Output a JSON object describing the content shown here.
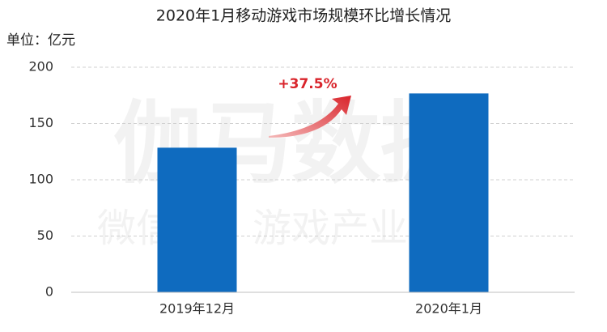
{
  "chart_data": {
    "type": "bar",
    "title": "2020年1月移动游戏市场规模环比增长情况",
    "unit_label": "单位：亿元",
    "categories": [
      "2019年12月",
      "2020年1月"
    ],
    "values": [
      128.5,
      176.7
    ],
    "color": "#0f6bbf",
    "ylim": [
      0,
      200
    ],
    "yticks": [
      0,
      50,
      100,
      150,
      200
    ],
    "grid": true,
    "annotation": "+37.5%",
    "watermark": [
      "伽马数据",
      "微信号：游戏产业报告"
    ]
  }
}
